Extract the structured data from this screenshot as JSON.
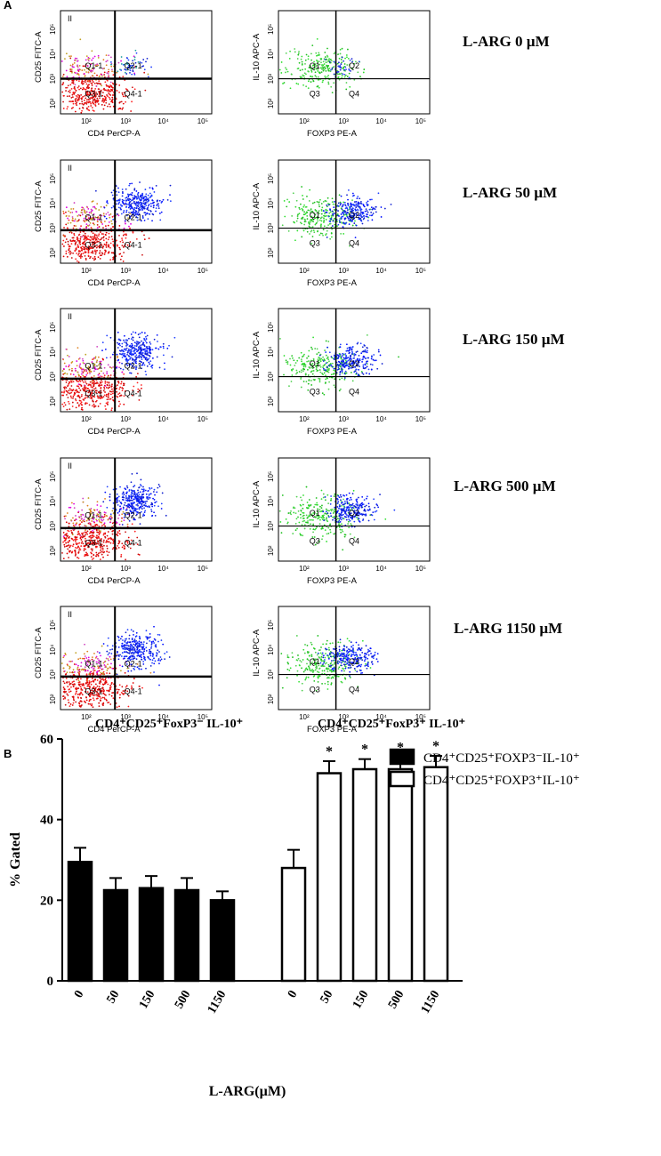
{
  "panel_a": {
    "label": "A",
    "axis_ticks": [
      "10²",
      "10³",
      "10⁴",
      "10⁵"
    ],
    "left_plot": {
      "x_label": "CD4 PerCP-A",
      "y_label": "CD25 FITC-A",
      "gate": "II",
      "quadrants": [
        "Q1-1",
        "Q2-1",
        "Q3-1",
        "Q4-1"
      ]
    },
    "right_plot": {
      "x_label": "FOXP3 PE-A",
      "y_label": "IL-10 APC-A",
      "quadrants": [
        "Q1",
        "Q2",
        "Q3",
        "Q4"
      ]
    },
    "rows": [
      "L-ARG 0 µM",
      "L-ARG 50 µM",
      "L-ARG 150 µM",
      "L-ARG 500 µM",
      "L-ARG 1150 µM"
    ]
  },
  "chart_data": {
    "type": "bar",
    "panel_label": "B",
    "group_titles": [
      "CD4⁺CD25⁺FoxP3⁻ IL-10⁺",
      "CD4⁺CD25⁺FoxP3⁺ IL-10⁺"
    ],
    "categories": [
      "0",
      "50",
      "150",
      "500",
      "1150"
    ],
    "series": [
      {
        "name": "CD4⁺CD25⁺FOXP3⁻IL-10⁺",
        "color": "#000000",
        "values": [
          29.5,
          22.5,
          23,
          22.5,
          20
        ],
        "errors": [
          3.5,
          3,
          3,
          3,
          2.2
        ]
      },
      {
        "name": "CD4⁺CD25⁺FOXP3⁺IL-10⁺",
        "color": "#ffffff",
        "values": [
          28,
          51.5,
          52.5,
          52.5,
          53
        ],
        "errors": [
          4.5,
          3,
          2.5,
          3,
          2.8
        ],
        "annotations": [
          null,
          "*",
          "*",
          "*",
          "*"
        ]
      }
    ],
    "ylim": [
      0,
      60
    ],
    "yticks": [
      0,
      20,
      40,
      60
    ],
    "y_label": "% Gated",
    "x_label": "L-ARG(µM)",
    "legend": "top-right"
  }
}
